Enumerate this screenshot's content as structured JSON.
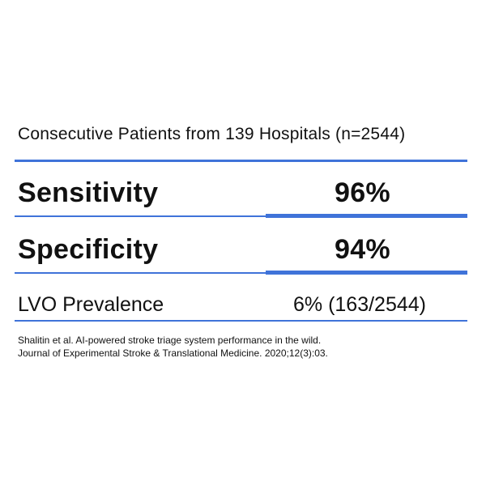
{
  "header": "Consecutive Patients from 139 Hospitals (n=2544)",
  "rows": [
    {
      "label": "Sensitivity",
      "value": "96%"
    },
    {
      "label": "Specificity",
      "value": "94%"
    },
    {
      "label": "LVO Prevalence",
      "value": "6% (163/2544)"
    }
  ],
  "citation": {
    "line1": "Shalitin et al. AI-powered stroke triage system performance in the wild.",
    "line2": "Journal of Experimental Stroke & Translational Medicine. 2020;12(3):03."
  },
  "colors": {
    "accent": "#3f73d9",
    "text": "#111111",
    "background": "#ffffff"
  }
}
